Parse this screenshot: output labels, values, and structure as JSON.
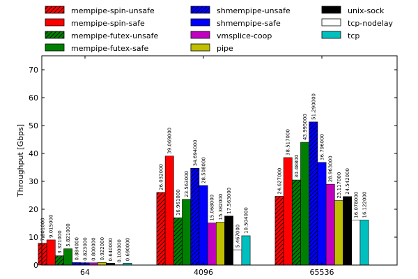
{
  "chart_data": {
    "type": "bar",
    "title": "",
    "xlabel": "",
    "ylabel": "Throughput [Gbps]",
    "ylim": [
      0,
      75
    ],
    "yticks": [
      0,
      10,
      20,
      30,
      40,
      50,
      60,
      70
    ],
    "grid": false,
    "legend_position": "top",
    "categories": [
      "64",
      "4096",
      "65536"
    ],
    "series": [
      {
        "name": "mempipe-spin-unsafe",
        "color": "#ff0000",
        "hatch": true,
        "values": [
          7.801,
          26.032,
          24.627
        ],
        "labels": [
          "7.801000",
          "26.032000",
          "24.627000"
        ]
      },
      {
        "name": "mempipe-spin-safe",
        "color": "#ff0000",
        "hatch": false,
        "values": [
          9.015,
          39.069,
          38.517
        ],
        "labels": [
          "9.015000",
          "39.069000",
          "38.517000"
        ]
      },
      {
        "name": "mempipe-futex-unsafe",
        "color": "#008000",
        "hatch": true,
        "values": [
          3.321,
          16.961,
          30.488
        ],
        "labels": [
          "3.321000",
          "16.961000",
          "30.48800"
        ]
      },
      {
        "name": "mempipe-futex-safe",
        "color": "#008000",
        "hatch": false,
        "values": [
          5.821,
          23.563,
          43.995
        ],
        "labels": [
          "5.821000",
          "23.563000",
          "43.995000"
        ]
      },
      {
        "name": "shmempipe-unsafe",
        "color": "#0000ff",
        "hatch": true,
        "values": [
          0.884,
          34.694,
          51.29
        ],
        "labels": [
          "0.884000",
          "34.694000",
          "51.290000"
        ]
      },
      {
        "name": "shmempipe-safe",
        "color": "#0000ff",
        "hatch": false,
        "values": [
          0.823,
          28.508,
          36.796
        ],
        "labels": [
          "0.823000",
          "28.508000",
          "36.796000"
        ]
      },
      {
        "name": "vmsplice-coop",
        "color": "#bf00bf",
        "hatch": false,
        "values": [
          0.8,
          15.068,
          28.963
        ],
        "labels": [
          "0.800000",
          "15.068000",
          "28.963000"
        ]
      },
      {
        "name": "pipe",
        "color": "#bfbf00",
        "hatch": false,
        "values": [
          0.922,
          15.382,
          23.117
        ],
        "labels": [
          "0.922000",
          "15.382000",
          "23.117000"
        ]
      },
      {
        "name": "unix-sock",
        "color": "#000000",
        "hatch": false,
        "values": [
          0.64,
          17.563,
          24.542
        ],
        "labels": [
          "0.640000",
          "17.563000",
          "24.542000"
        ]
      },
      {
        "name": "tcp-nodelay",
        "color": "#ffffff",
        "hatch": false,
        "values": [
          0.1,
          5.467,
          16.078
        ],
        "labels": [
          "0.100000",
          "5.467000",
          "16.078000"
        ]
      },
      {
        "name": "tcp",
        "color": "#00bfbf",
        "hatch": false,
        "values": [
          0.69,
          10.504,
          16.122
        ],
        "labels": [
          "0.690000",
          "10.504000",
          "16.122000"
        ]
      }
    ]
  }
}
